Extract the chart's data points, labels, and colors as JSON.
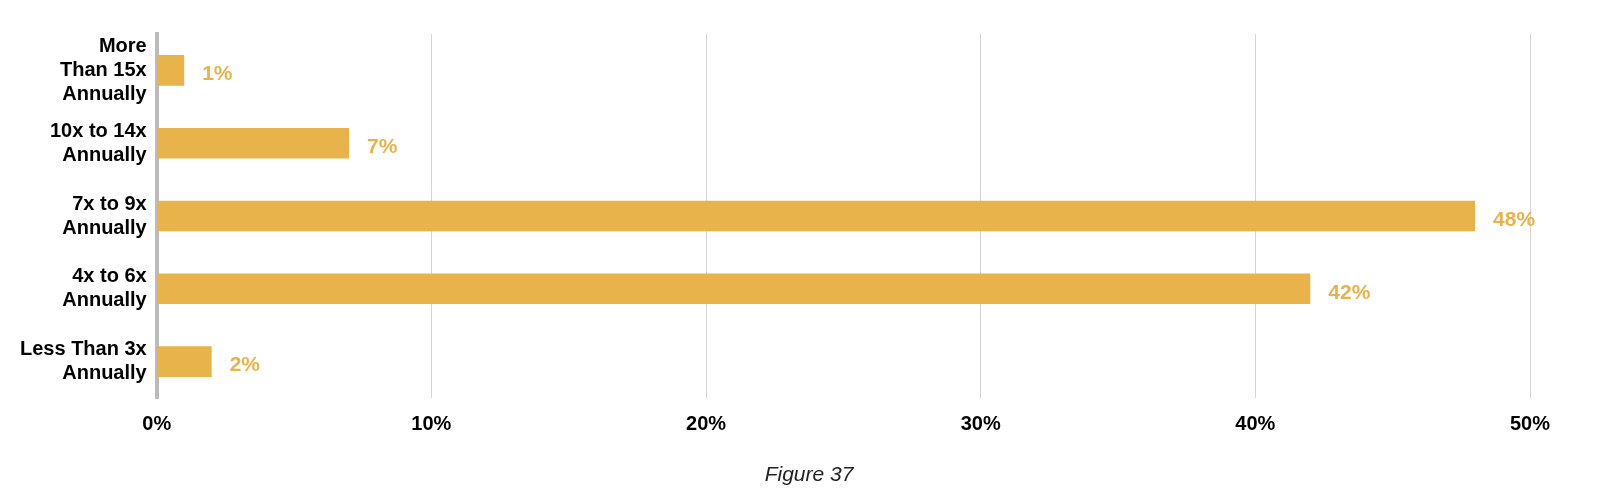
{
  "chart_data": {
    "type": "bar",
    "orientation": "horizontal",
    "categories": [
      "More\nThan 15x\nAnnually",
      "10x to 14x\nAnnually",
      "7x to 9x\nAnnually",
      "4x to 6x\nAnnually",
      "Less Than 3x\nAnnually"
    ],
    "values": [
      1,
      7,
      48,
      42,
      2
    ],
    "color": "#e8b34a",
    "xlim": [
      0,
      50
    ],
    "xticks": [
      {
        "value": 0,
        "label": "0%"
      },
      {
        "value": 10,
        "label": "10%"
      },
      {
        "value": 20,
        "label": "20%"
      },
      {
        "value": 30,
        "label": "30%"
      },
      {
        "value": 40,
        "label": "40%"
      },
      {
        "value": 50,
        "label": "50%"
      }
    ],
    "grid": "x",
    "value_labels": [
      "1%",
      "7%",
      "48%",
      "42%",
      "2%"
    ],
    "legend": false,
    "annotations": [
      "Figure 37"
    ]
  }
}
